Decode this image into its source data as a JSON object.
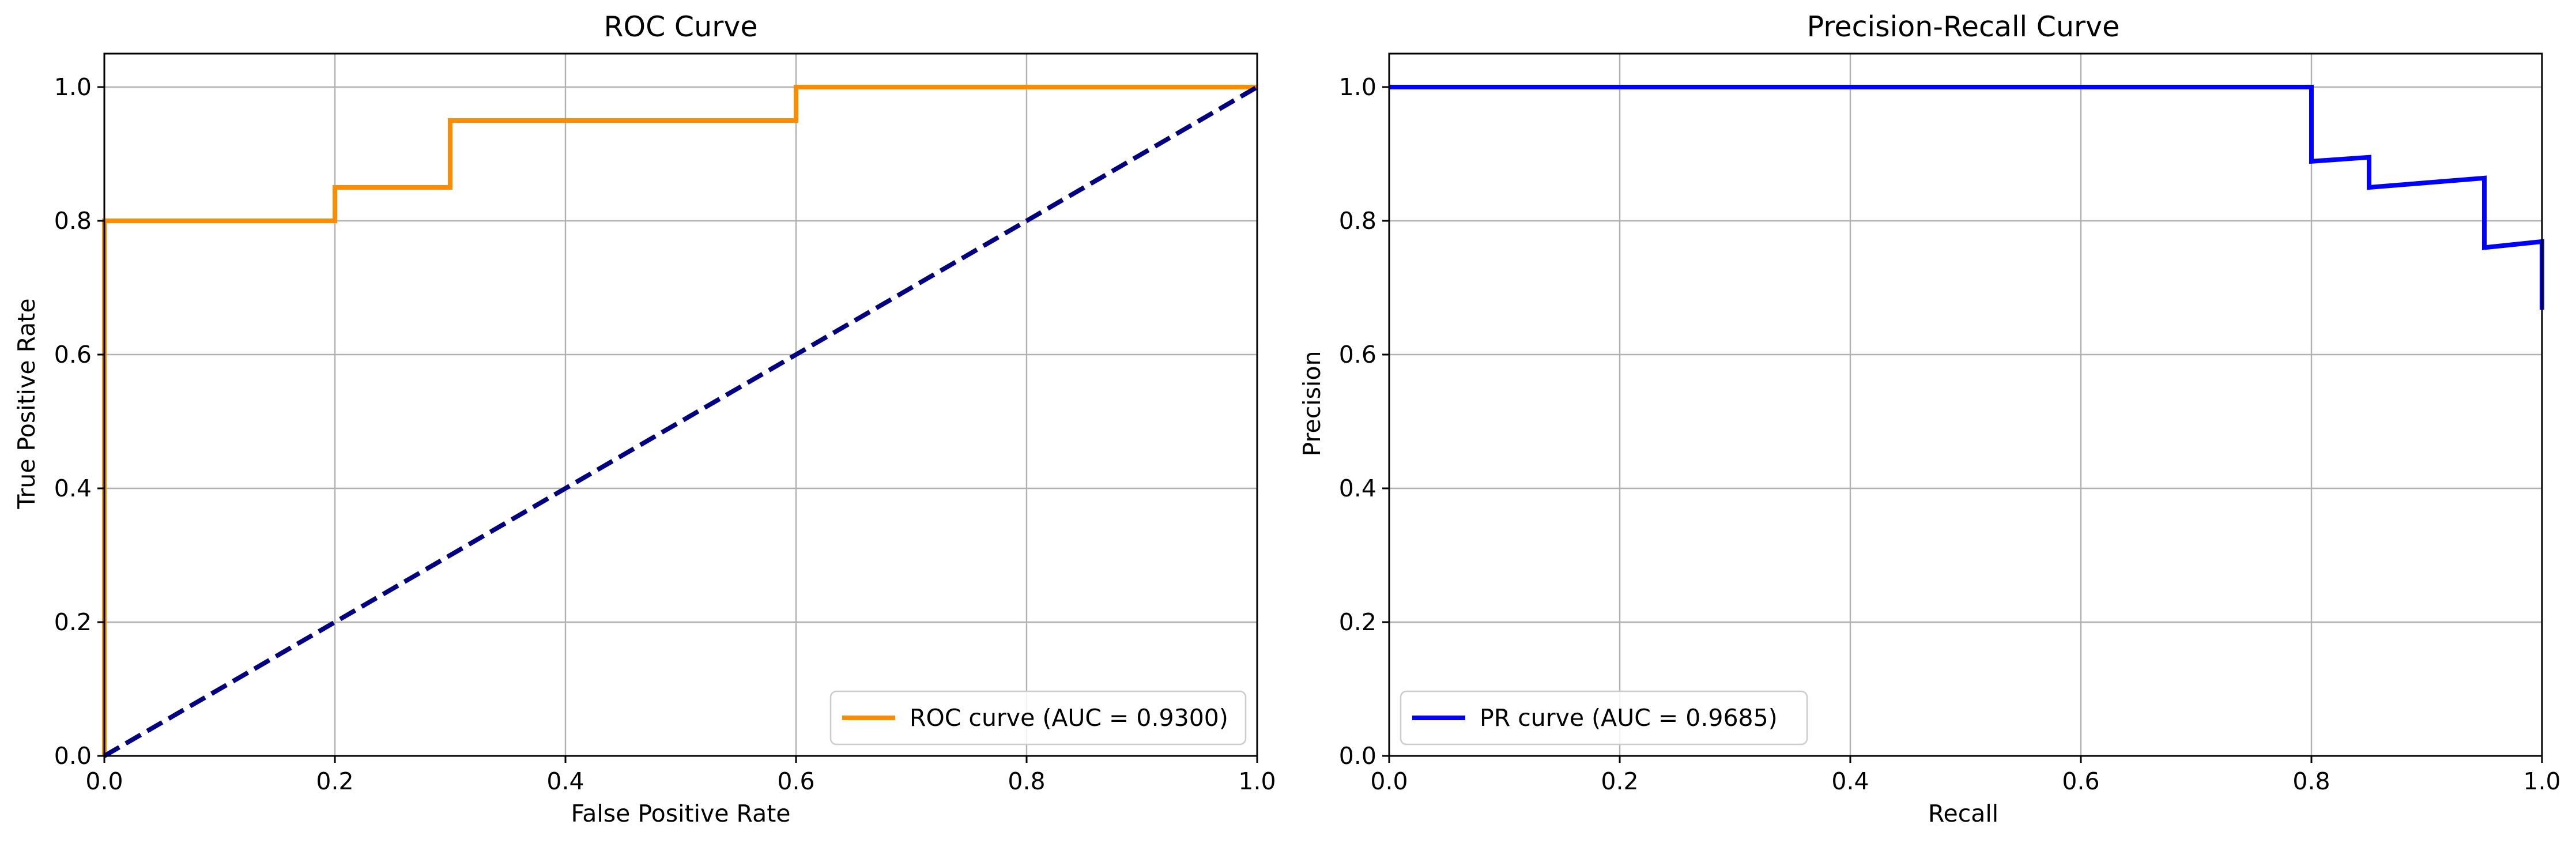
{
  "chart_data": [
    {
      "type": "line",
      "title": "ROC Curve",
      "xlabel": "False Positive Rate",
      "ylabel": "True Positive Rate",
      "xlim": [
        0.0,
        1.0
      ],
      "ylim": [
        0.0,
        1.05
      ],
      "grid": true,
      "legend_position": "lower right",
      "x_ticks": [
        "0.0",
        "0.2",
        "0.4",
        "0.6",
        "0.8",
        "1.0"
      ],
      "y_ticks": [
        "0.0",
        "0.2",
        "0.4",
        "0.6",
        "0.8",
        "1.0"
      ],
      "series": [
        {
          "name": "ROC curve (AUC = 0.9300)",
          "color": "#ff8c00",
          "style": "solid",
          "x": [
            0.0,
            0.0,
            0.2,
            0.2,
            0.3,
            0.3,
            0.6,
            0.6,
            1.0
          ],
          "y": [
            0.0,
            0.8,
            0.8,
            0.85,
            0.85,
            0.95,
            0.95,
            1.0,
            1.0
          ]
        },
        {
          "name": "",
          "color": "#000080",
          "style": "dashed",
          "x": [
            0.0,
            1.0
          ],
          "y": [
            0.0,
            1.0
          ]
        }
      ]
    },
    {
      "type": "line",
      "title": "Precision-Recall Curve",
      "xlabel": "Recall",
      "ylabel": "Precision",
      "xlim": [
        0.0,
        1.0
      ],
      "ylim": [
        0.0,
        1.05
      ],
      "grid": true,
      "legend_position": "lower left",
      "x_ticks": [
        "0.0",
        "0.2",
        "0.4",
        "0.6",
        "0.8",
        "1.0"
      ],
      "y_ticks": [
        "0.0",
        "0.2",
        "0.4",
        "0.6",
        "0.8",
        "1.0"
      ],
      "series": [
        {
          "name": "PR curve (AUC = 0.9685)",
          "color": "#0000ff",
          "style": "solid",
          "x": [
            0.0,
            0.8,
            0.8,
            0.85,
            0.85,
            0.95,
            0.95,
            1.0,
            1.0
          ],
          "y": [
            1.0,
            1.0,
            0.889,
            0.895,
            0.85,
            0.864,
            0.76,
            0.769,
            0.667
          ]
        }
      ]
    }
  ]
}
